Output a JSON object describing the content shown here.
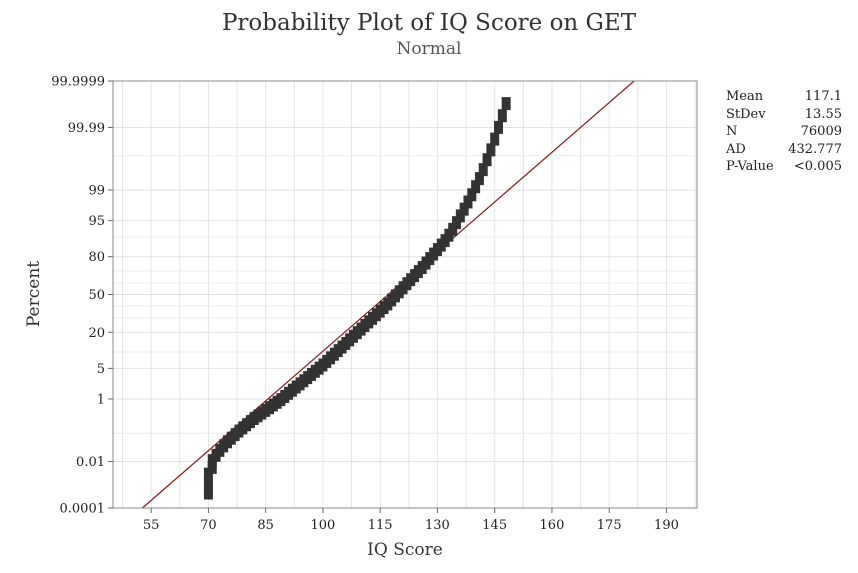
{
  "chart_data": {
    "type": "scatter",
    "title": "Probability Plot of IQ Score on GET",
    "subtitle": "Normal",
    "xlabel": "IQ Score",
    "ylabel": "Percent",
    "scale": "normal-probability",
    "xlim": [
      45,
      198
    ],
    "ylim_percent": [
      0.0001,
      99.9999
    ],
    "x_ticks": [
      55,
      70,
      85,
      100,
      115,
      130,
      145,
      160,
      175,
      190
    ],
    "y_ticks": [
      {
        "value": 0.0001,
        "label": "0.0001"
      },
      {
        "value": 0.01,
        "label": "0.01"
      },
      {
        "value": 1,
        "label": "1"
      },
      {
        "value": 5,
        "label": "5"
      },
      {
        "value": 20,
        "label": "20"
      },
      {
        "value": 50,
        "label": "50"
      },
      {
        "value": 80,
        "label": "80"
      },
      {
        "value": 95,
        "label": "95"
      },
      {
        "value": 99,
        "label": "99"
      },
      {
        "value": 99.99,
        "label": "99.99"
      },
      {
        "value": 99.9999,
        "label": "99.9999"
      }
    ],
    "grid": true,
    "fit_line": {
      "mean": 117.1,
      "stdev": 13.55,
      "color": "#8b1a1a"
    },
    "series": [
      {
        "color": "#333333",
        "points": [
          {
            "x": 70,
            "z": -4.42
          },
          {
            "x": 70,
            "z": -4.2
          },
          {
            "x": 70,
            "z": -4.0
          },
          {
            "x": 71,
            "z": -3.85
          },
          {
            "x": 71,
            "z": -3.7
          },
          {
            "x": 72,
            "z": -3.58
          },
          {
            "x": 73,
            "z": -3.47
          },
          {
            "x": 74,
            "z": -3.37
          },
          {
            "x": 75,
            "z": -3.28
          },
          {
            "x": 76,
            "z": -3.2
          },
          {
            "x": 77,
            "z": -3.12
          },
          {
            "x": 78,
            "z": -3.04
          },
          {
            "x": 79,
            "z": -2.97
          },
          {
            "x": 80,
            "z": -2.9
          },
          {
            "x": 81,
            "z": -2.83
          },
          {
            "x": 82,
            "z": -2.76
          },
          {
            "x": 83,
            "z": -2.7
          },
          {
            "x": 84,
            "z": -2.64
          },
          {
            "x": 85,
            "z": -2.58
          },
          {
            "x": 86,
            "z": -2.52
          },
          {
            "x": 87,
            "z": -2.46
          },
          {
            "x": 88,
            "z": -2.4
          },
          {
            "x": 89,
            "z": -2.34
          },
          {
            "x": 90,
            "z": -2.27
          },
          {
            "x": 91,
            "z": -2.2
          },
          {
            "x": 92,
            "z": -2.13
          },
          {
            "x": 93,
            "z": -2.06
          },
          {
            "x": 94,
            "z": -1.99
          },
          {
            "x": 95,
            "z": -1.92
          },
          {
            "x": 96,
            "z": -1.85
          },
          {
            "x": 97,
            "z": -1.78
          },
          {
            "x": 98,
            "z": -1.71
          },
          {
            "x": 99,
            "z": -1.64
          },
          {
            "x": 100,
            "z": -1.57
          },
          {
            "x": 101,
            "z": -1.49
          },
          {
            "x": 102,
            "z": -1.41
          },
          {
            "x": 103,
            "z": -1.33
          },
          {
            "x": 104,
            "z": -1.25
          },
          {
            "x": 105,
            "z": -1.17
          },
          {
            "x": 106,
            "z": -1.09
          },
          {
            "x": 107,
            "z": -1.01
          },
          {
            "x": 108,
            "z": -0.93
          },
          {
            "x": 109,
            "z": -0.85
          },
          {
            "x": 110,
            "z": -0.77
          },
          {
            "x": 111,
            "z": -0.69
          },
          {
            "x": 112,
            "z": -0.61
          },
          {
            "x": 113,
            "z": -0.53
          },
          {
            "x": 114,
            "z": -0.45
          },
          {
            "x": 115,
            "z": -0.37
          },
          {
            "x": 116,
            "z": -0.29
          },
          {
            "x": 117,
            "z": -0.21
          },
          {
            "x": 118,
            "z": -0.12
          },
          {
            "x": 119,
            "z": -0.03
          },
          {
            "x": 120,
            "z": 0.06
          },
          {
            "x": 121,
            "z": 0.15
          },
          {
            "x": 122,
            "z": 0.24
          },
          {
            "x": 123,
            "z": 0.33
          },
          {
            "x": 124,
            "z": 0.42
          },
          {
            "x": 125,
            "z": 0.51
          },
          {
            "x": 126,
            "z": 0.6
          },
          {
            "x": 127,
            "z": 0.7
          },
          {
            "x": 128,
            "z": 0.8
          },
          {
            "x": 129,
            "z": 0.9
          },
          {
            "x": 130,
            "z": 1.0
          },
          {
            "x": 131,
            "z": 1.1
          },
          {
            "x": 132,
            "z": 1.2
          },
          {
            "x": 133,
            "z": 1.32
          },
          {
            "x": 134,
            "z": 1.45
          },
          {
            "x": 135,
            "z": 1.6
          },
          {
            "x": 136,
            "z": 1.75
          },
          {
            "x": 137,
            "z": 1.9
          },
          {
            "x": 138,
            "z": 2.06
          },
          {
            "x": 139,
            "z": 2.22
          },
          {
            "x": 140,
            "z": 2.4
          },
          {
            "x": 141,
            "z": 2.58
          },
          {
            "x": 142,
            "z": 2.78
          },
          {
            "x": 143,
            "z": 3.0
          },
          {
            "x": 144,
            "z": 3.22
          },
          {
            "x": 145,
            "z": 3.46
          },
          {
            "x": 146,
            "z": 3.72
          },
          {
            "x": 147,
            "z": 3.98
          },
          {
            "x": 148,
            "z": 4.25
          }
        ]
      }
    ]
  },
  "stats": [
    {
      "label": "Mean",
      "value": "117.1"
    },
    {
      "label": "StDev",
      "value": "13.55"
    },
    {
      "label": "N",
      "value": "76009"
    },
    {
      "label": "AD",
      "value": "432.777"
    },
    {
      "label": "P-Value",
      "value": "<0.005"
    }
  ]
}
